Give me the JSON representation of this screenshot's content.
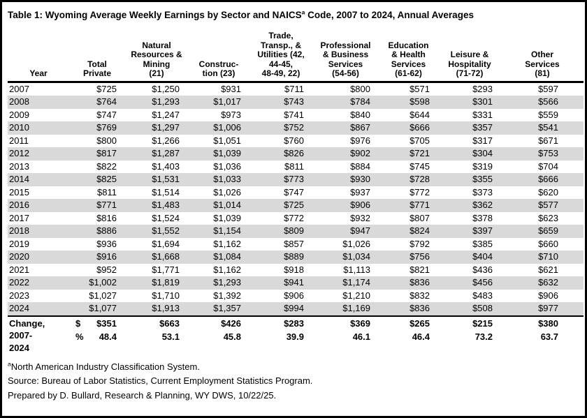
{
  "title": {
    "prefix": "Table 1: Wyoming Average Weekly Earnings by Sector and NAICS",
    "superscript": "a",
    "suffix": " Code, 2007 to 2024, Annual Averages"
  },
  "table": {
    "columns": [
      {
        "id": "year",
        "label": "Year",
        "lines": [
          "Year"
        ]
      },
      {
        "id": "total-private",
        "label": "Total Private",
        "lines": [
          "Total",
          "Private"
        ]
      },
      {
        "id": "natural-resources-mining",
        "label": "Natural Resources & Mining (21)",
        "lines": [
          "Natural",
          "Resources &",
          "Mining",
          "(21)"
        ]
      },
      {
        "id": "construction",
        "label": "Construction (23)",
        "lines": [
          "Construc-",
          "tion (23)"
        ]
      },
      {
        "id": "trade-transp-utilities",
        "label": "Trade, Transp., & Utilities (42, 44-45, 48-49, 22)",
        "lines": [
          "Trade,",
          "Transp., &",
          "Utilities (42,",
          "44-45,",
          "48-49, 22)"
        ]
      },
      {
        "id": "professional-business-services",
        "label": "Professional & Business Services (54-56)",
        "lines": [
          "Professional",
          "& Business",
          "Services",
          "(54-56)"
        ]
      },
      {
        "id": "education-health-services",
        "label": "Education & Health Services (61-62)",
        "lines": [
          "Education",
          "& Health",
          "Services",
          "(61-62)"
        ]
      },
      {
        "id": "leisure-hospitality",
        "label": "Leisure & Hospitality (71-72)",
        "lines": [
          "Leisure &",
          "Hospitality",
          "(71-72)"
        ]
      },
      {
        "id": "other-services",
        "label": "Other Services (81)",
        "lines": [
          "Other",
          "Services",
          "(81)"
        ]
      }
    ],
    "rows": [
      {
        "year": "2007",
        "values": [
          "$725",
          "$1,250",
          "$931",
          "$711",
          "$800",
          "$571",
          "$293",
          "$597"
        ]
      },
      {
        "year": "2008",
        "values": [
          "$764",
          "$1,293",
          "$1,017",
          "$743",
          "$784",
          "$598",
          "$301",
          "$566"
        ]
      },
      {
        "year": "2009",
        "values": [
          "$747",
          "$1,247",
          "$973",
          "$741",
          "$840",
          "$644",
          "$331",
          "$559"
        ]
      },
      {
        "year": "2010",
        "values": [
          "$769",
          "$1,297",
          "$1,006",
          "$752",
          "$867",
          "$666",
          "$357",
          "$541"
        ]
      },
      {
        "year": "2011",
        "values": [
          "$800",
          "$1,266",
          "$1,051",
          "$760",
          "$976",
          "$705",
          "$317",
          "$671"
        ]
      },
      {
        "year": "2012",
        "values": [
          "$817",
          "$1,287",
          "$1,039",
          "$826",
          "$902",
          "$721",
          "$304",
          "$753"
        ]
      },
      {
        "year": "2013",
        "values": [
          "$822",
          "$1,403",
          "$1,036",
          "$811",
          "$884",
          "$745",
          "$319",
          "$704"
        ]
      },
      {
        "year": "2014",
        "values": [
          "$825",
          "$1,531",
          "$1,033",
          "$773",
          "$930",
          "$728",
          "$355",
          "$666"
        ]
      },
      {
        "year": "2015",
        "values": [
          "$811",
          "$1,514",
          "$1,026",
          "$747",
          "$937",
          "$772",
          "$373",
          "$620"
        ]
      },
      {
        "year": "2016",
        "values": [
          "$771",
          "$1,483",
          "$1,014",
          "$725",
          "$906",
          "$771",
          "$362",
          "$577"
        ]
      },
      {
        "year": "2017",
        "values": [
          "$816",
          "$1,524",
          "$1,039",
          "$772",
          "$932",
          "$807",
          "$378",
          "$623"
        ]
      },
      {
        "year": "2018",
        "values": [
          "$886",
          "$1,552",
          "$1,154",
          "$809",
          "$947",
          "$824",
          "$397",
          "$659"
        ]
      },
      {
        "year": "2019",
        "values": [
          "$936",
          "$1,694",
          "$1,162",
          "$857",
          "$1,026",
          "$792",
          "$385",
          "$660"
        ]
      },
      {
        "year": "2020",
        "values": [
          "$916",
          "$1,668",
          "$1,084",
          "$889",
          "$1,034",
          "$756",
          "$404",
          "$710"
        ]
      },
      {
        "year": "2021",
        "values": [
          "$952",
          "$1,771",
          "$1,162",
          "$918",
          "$1,113",
          "$821",
          "$436",
          "$621"
        ]
      },
      {
        "year": "2022",
        "values": [
          "$1,002",
          "$1,819",
          "$1,293",
          "$941",
          "$1,174",
          "$836",
          "$456",
          "$632"
        ]
      },
      {
        "year": "2023",
        "values": [
          "$1,027",
          "$1,710",
          "$1,392",
          "$906",
          "$1,210",
          "$832",
          "$483",
          "$906"
        ]
      },
      {
        "year": "2024",
        "values": [
          "$1,077",
          "$1,913",
          "$1,357",
          "$994",
          "$1,169",
          "$836",
          "$508",
          "$977"
        ]
      }
    ],
    "change": {
      "label_lines": [
        "Change,",
        "2007-",
        "2024"
      ],
      "dollar_symbol": "$",
      "percent_symbol": "%",
      "dollar_values": [
        "$351",
        "$663",
        "$426",
        "$283",
        "$369",
        "$265",
        "$215",
        "$380"
      ],
      "percent_values": [
        "48.4",
        "53.1",
        "45.8",
        "39.9",
        "46.1",
        "46.4",
        "73.2",
        "63.7"
      ]
    }
  },
  "footnotes": {
    "naics_superscript": "a",
    "naics_text": "North American Industry Classification System.",
    "source": "Source: Bureau of Labor Statistics, Current Employment Statistics Program.",
    "prepared": "Prepared by D. Bullard, Research & Planning, WY DWS, 10/22/25."
  },
  "colors": {
    "stripe": "#d9d9d9",
    "border": "#000000",
    "text": "#000000",
    "background": "#ffffff"
  }
}
